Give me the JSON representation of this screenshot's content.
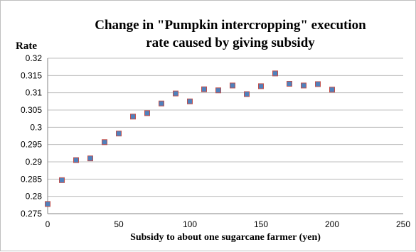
{
  "chart_data": {
    "type": "scatter",
    "title_lines": [
      "Change in \"Pumpkin intercropping\" execution",
      "rate caused by giving subsidy"
    ],
    "xlabel": "Subsidy to about one sugarcane farmer (yen)",
    "ylabel": "Rate",
    "xlim": [
      0,
      250
    ],
    "ylim": [
      0.275,
      0.32
    ],
    "xticks": [
      "0",
      "50",
      "100",
      "150",
      "200",
      "250"
    ],
    "yticks": [
      "0.275",
      "0.28",
      "0.285",
      "0.29",
      "0.295",
      "0.3",
      "0.305",
      "0.31",
      "0.315",
      "0.32"
    ],
    "grid": "horizontal",
    "marker_fill": "#4f81bd",
    "marker_edge": "#c0504d",
    "gridline_color": "#bfbfbf",
    "points": [
      {
        "x": 0,
        "y": 0.2778
      },
      {
        "x": 10,
        "y": 0.2847
      },
      {
        "x": 20,
        "y": 0.2905
      },
      {
        "x": 30,
        "y": 0.291
      },
      {
        "x": 40,
        "y": 0.2957
      },
      {
        "x": 50,
        "y": 0.2982
      },
      {
        "x": 60,
        "y": 0.3031
      },
      {
        "x": 70,
        "y": 0.3041
      },
      {
        "x": 80,
        "y": 0.3069
      },
      {
        "x": 90,
        "y": 0.3098
      },
      {
        "x": 100,
        "y": 0.3075
      },
      {
        "x": 110,
        "y": 0.311
      },
      {
        "x": 120,
        "y": 0.3107
      },
      {
        "x": 130,
        "y": 0.3121
      },
      {
        "x": 140,
        "y": 0.3096
      },
      {
        "x": 150,
        "y": 0.3119
      },
      {
        "x": 160,
        "y": 0.3156
      },
      {
        "x": 170,
        "y": 0.3126
      },
      {
        "x": 180,
        "y": 0.3121
      },
      {
        "x": 190,
        "y": 0.3125
      },
      {
        "x": 200,
        "y": 0.3109
      }
    ]
  }
}
